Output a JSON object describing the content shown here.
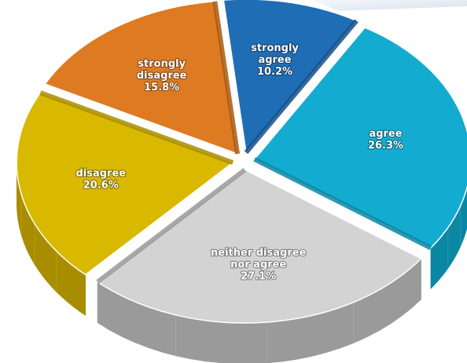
{
  "chart_data": {
    "type": "pie",
    "style": "3d-exploded",
    "slices": [
      {
        "label_lines": [
          "strongly",
          "agree"
        ],
        "pct_label": "10.2%",
        "value": 10.2,
        "color": "#1f6db5",
        "side_color": "#15508a"
      },
      {
        "label_lines": [
          "agree"
        ],
        "pct_label": "26.3%",
        "value": 26.3,
        "color": "#13acd0",
        "side_color": "#0b87a4"
      },
      {
        "label_lines": [
          "neither disagree",
          "nor agree"
        ],
        "pct_label": "27.1%",
        "value": 27.1,
        "color": "#d3d3d3",
        "side_color": "#9a9a9a"
      },
      {
        "label_lines": [
          "disagree"
        ],
        "pct_label": "20.6%",
        "value": 20.6,
        "color": "#d9b800",
        "side_color": "#a98d00"
      },
      {
        "label_lines": [
          "strongly",
          "disagree"
        ],
        "pct_label": "15.8%",
        "value": 15.8,
        "color": "#de7a22",
        "side_color": "#a95a12"
      }
    ]
  }
}
